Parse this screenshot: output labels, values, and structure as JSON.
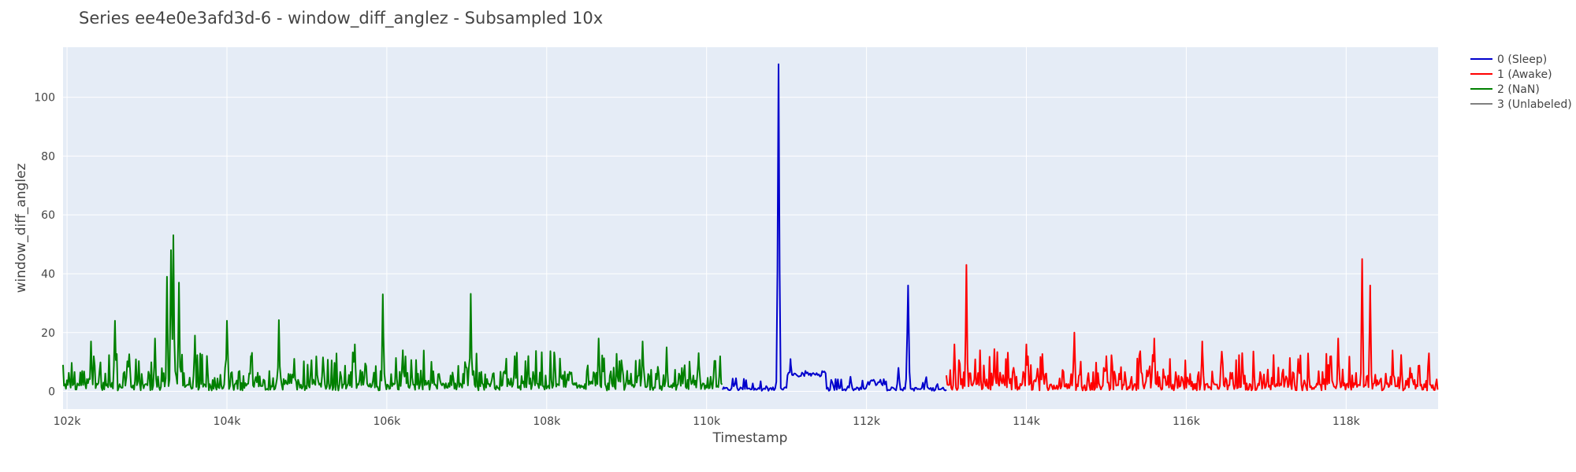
{
  "chart_data": {
    "type": "line",
    "title": "Series ee4e0e3afd3d-6 - window_diff_anglez - Subsampled 10x",
    "xlabel": "Timestamp",
    "ylabel": "window_diff_anglez",
    "xlim": [
      101950,
      119150
    ],
    "ylim": [
      -6,
      117
    ],
    "x_ticks": [
      102000,
      104000,
      106000,
      108000,
      110000,
      112000,
      114000,
      116000,
      118000
    ],
    "x_tick_labels": [
      "102k",
      "104k",
      "106k",
      "108k",
      "110k",
      "112k",
      "114k",
      "116k",
      "118k"
    ],
    "y_ticks": [
      0,
      20,
      40,
      60,
      80,
      100
    ],
    "y_tick_labels": [
      "0",
      "20",
      "40",
      "60",
      "80",
      "100"
    ],
    "grid": true,
    "legend_position": "top-right",
    "colors": {
      "plot_bg": "#e5ecf6",
      "grid": "#ffffff"
    },
    "series": [
      {
        "name": "0 (Sleep)",
        "color": "#0000cc",
        "x_range": [
          110200,
          113000
        ],
        "peaks": [
          [
            110350,
            2.5
          ],
          [
            110900,
            111
          ],
          [
            111050,
            11
          ],
          [
            111300,
            6
          ],
          [
            111800,
            5
          ],
          [
            112400,
            8
          ],
          [
            112520,
            36
          ]
        ]
      },
      {
        "name": "1 (Awake)",
        "color": "#ff0000",
        "x_range": [
          113000,
          119150
        ],
        "peaks": [
          [
            113000,
            5
          ],
          [
            113100,
            16
          ],
          [
            113250,
            43
          ],
          [
            113600,
            14
          ],
          [
            114000,
            16
          ],
          [
            114600,
            20
          ],
          [
            115000,
            12
          ],
          [
            115600,
            18
          ],
          [
            116200,
            17
          ],
          [
            116700,
            13
          ],
          [
            117400,
            11
          ],
          [
            117900,
            18
          ],
          [
            118200,
            45
          ],
          [
            118300,
            36
          ],
          [
            118800,
            8
          ]
        ]
      },
      {
        "name": "2 (NaN)",
        "color": "#008000",
        "x_range": [
          101950,
          110200
        ],
        "peaks": [
          [
            102300,
            17
          ],
          [
            102600,
            24
          ],
          [
            103100,
            18
          ],
          [
            103250,
            39
          ],
          [
            103300,
            48
          ],
          [
            103330,
            53
          ],
          [
            103400,
            37
          ],
          [
            103600,
            19
          ],
          [
            104000,
            24
          ],
          [
            104300,
            12
          ],
          [
            104650,
            24
          ],
          [
            105600,
            16
          ],
          [
            105950,
            33
          ],
          [
            106200,
            14
          ],
          [
            107050,
            33
          ],
          [
            107600,
            12
          ],
          [
            108100,
            12
          ],
          [
            108650,
            18
          ],
          [
            109200,
            17
          ],
          [
            109500,
            15
          ],
          [
            109900,
            13
          ]
        ]
      },
      {
        "name": "3 (Unlabeled)",
        "color": "#808080",
        "x_range": [],
        "peaks": []
      }
    ]
  }
}
